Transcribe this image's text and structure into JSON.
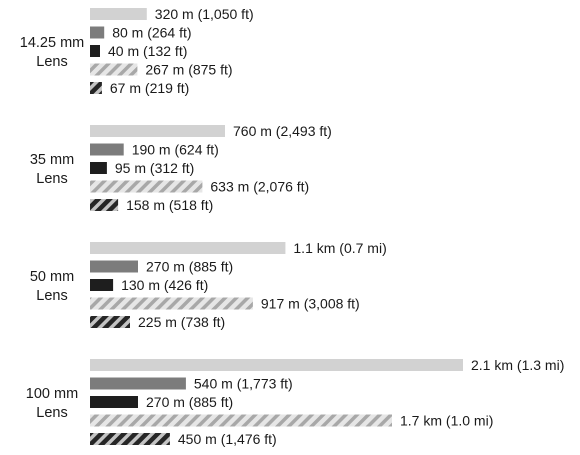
{
  "chart_data": {
    "type": "bar",
    "orientation": "horizontal",
    "unit": "m",
    "categories": [
      {
        "label": [
          "14.25 mm",
          "Lens"
        ]
      },
      {
        "label": [
          "35 mm",
          "Lens"
        ]
      },
      {
        "label": [
          "50 mm",
          "Lens"
        ]
      },
      {
        "label": [
          "100 mm",
          "Lens"
        ]
      }
    ],
    "series": [
      {
        "style": "light-gray",
        "values": [
          320,
          760,
          1100,
          2100
        ],
        "labels": [
          "320 m (1,050 ft)",
          "760 m (2,493 ft)",
          "1.1 km (0.7 mi)",
          "2.1 km (1.3 mi)"
        ]
      },
      {
        "style": "medium-gray",
        "values": [
          80,
          190,
          270,
          540
        ],
        "labels": [
          "80 m (264 ft)",
          "190 m (624 ft)",
          "270 m (885 ft)",
          "540 m (1,773 ft)"
        ]
      },
      {
        "style": "black",
        "values": [
          40,
          95,
          130,
          270
        ],
        "labels": [
          "40 m (132 ft)",
          "95 m (312 ft)",
          "130 m (426 ft)",
          "270 m (885 ft)"
        ]
      },
      {
        "style": "light-hatched",
        "values": [
          267,
          633,
          917,
          1700
        ],
        "labels": [
          "267 m (875 ft)",
          "633 m (2,076 ft)",
          "917 m (3,008 ft)",
          "1.7 km (1.0 mi)"
        ]
      },
      {
        "style": "dark-hatched",
        "values": [
          67,
          158,
          225,
          450
        ],
        "labels": [
          "67 m (219 ft)",
          "158 m (518 ft)",
          "225 m (738 ft)",
          "450 m (1,476 ft)"
        ]
      }
    ],
    "grid": false,
    "legend": "none"
  },
  "colors": {
    "light-gray": "#d2d2d2",
    "medium-gray": "#7c7c7c",
    "black": "#1e1e1e",
    "hatch-light-bg": "#e6e6e6",
    "hatch-light-stripe": "#a8a8a8",
    "hatch-dark-bg": "#c4c4c4",
    "hatch-dark-stripe": "#262626"
  }
}
